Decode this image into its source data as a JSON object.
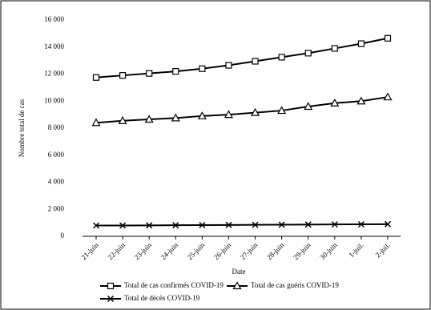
{
  "chart_data": {
    "type": "line",
    "x_label": "Date",
    "y_label": "Nombre total de cas",
    "categories": [
      "21-juin",
      "22-juin",
      "23-juin",
      "24-juin",
      "25-juin",
      "26-juin",
      "27-juin",
      "28-juin",
      "29-juin",
      "30-juin",
      "1-juil.",
      "2-juil."
    ],
    "series": [
      {
        "name": "Total de cas confirmés COVID-19",
        "color": "#000000",
        "marker": "square",
        "values": [
          11750,
          11900,
          12050,
          12200,
          12400,
          12650,
          12950,
          13250,
          13550,
          13900,
          14250,
          14650
        ]
      },
      {
        "name": "Total de cas guéris COVID-19",
        "color": "#000000",
        "marker": "triangle",
        "values": [
          8400,
          8550,
          8650,
          8750,
          8900,
          9000,
          9150,
          9300,
          9600,
          9850,
          10000,
          10300
        ]
      },
      {
        "name": "Total de décès COVID-19",
        "color": "#000000",
        "marker": "x",
        "values": [
          800,
          800,
          810,
          820,
          830,
          840,
          850,
          860,
          870,
          880,
          890,
          900
        ]
      }
    ],
    "ylim": [
      0,
      16000
    ],
    "yticks": [
      0,
      {
        "value": 2000,
        "label": "2 000"
      },
      {
        "value": 4000,
        "label": "4 000"
      },
      {
        "value": 6000,
        "label": "6 000"
      },
      {
        "value": 8000,
        "label": "8 000"
      },
      {
        "value": 10000,
        "label": "10 000"
      },
      {
        "value": 12000,
        "label": "12 000"
      },
      {
        "value": 14000,
        "label": "14 000"
      },
      {
        "value": 16000,
        "label": "16 000"
      }
    ],
    "grid": false
  }
}
